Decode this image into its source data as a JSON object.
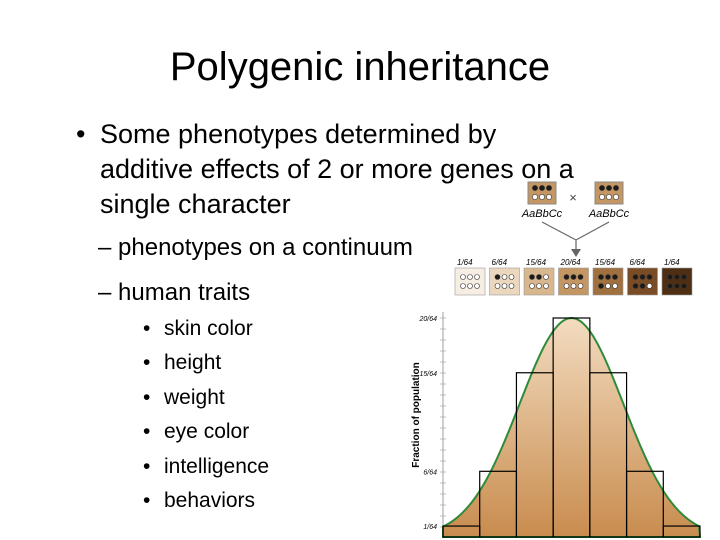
{
  "slide": {
    "title": "Polygenic inheritance",
    "bullet_marker": "•",
    "bullet_lines": [
      "Some phenotypes determined by",
      "additive effects of 2 or more genes on a",
      "single character"
    ],
    "sub_marker": "–",
    "sub_bullets": [
      "phenotypes on a continuum",
      "human traits"
    ],
    "traits": [
      "skin color",
      "height",
      "weight",
      "eye color",
      "intelligence",
      "behaviors"
    ]
  },
  "figure": {
    "parent_left": "AaBbCc",
    "parent_right": "AaBbCc",
    "cross_symbol": "×",
    "ylabel": "Fraction of population",
    "offspring_fractions": [
      {
        "num": "1",
        "den": "64",
        "dark_dots": 0
      },
      {
        "num": "6",
        "den": "64",
        "dark_dots": 1
      },
      {
        "num": "15",
        "den": "64",
        "dark_dots": 2
      },
      {
        "num": "20",
        "den": "64",
        "dark_dots": 3
      },
      {
        "num": "15",
        "den": "64",
        "dark_dots": 4
      },
      {
        "num": "6",
        "den": "64",
        "dark_dots": 5
      },
      {
        "num": "1",
        "den": "64",
        "dark_dots": 6
      }
    ],
    "y_ticks": [
      {
        "num": "20",
        "den": "64",
        "value": 20
      },
      {
        "num": "15",
        "den": "64",
        "value": 15
      },
      {
        "num": "6",
        "den": "64",
        "value": 6
      },
      {
        "num": "1",
        "den": "64",
        "value": 1
      }
    ],
    "histogram_values": [
      1,
      6,
      15,
      20,
      15,
      6,
      1
    ],
    "colors": {
      "curve_outline": "#2f8a3a",
      "fill_top": "#f3dcc0",
      "fill_bottom": "#c88c4e",
      "tile_1": "#f6eee3",
      "tile_2": "#ead7bd",
      "tile_3": "#d8b68e",
      "tile_4": "#c39664",
      "tile_5": "#a0703f",
      "tile_6": "#7a4c25",
      "tile_7": "#4f2f14",
      "dot_dark": "#1a1a1a"
    }
  }
}
